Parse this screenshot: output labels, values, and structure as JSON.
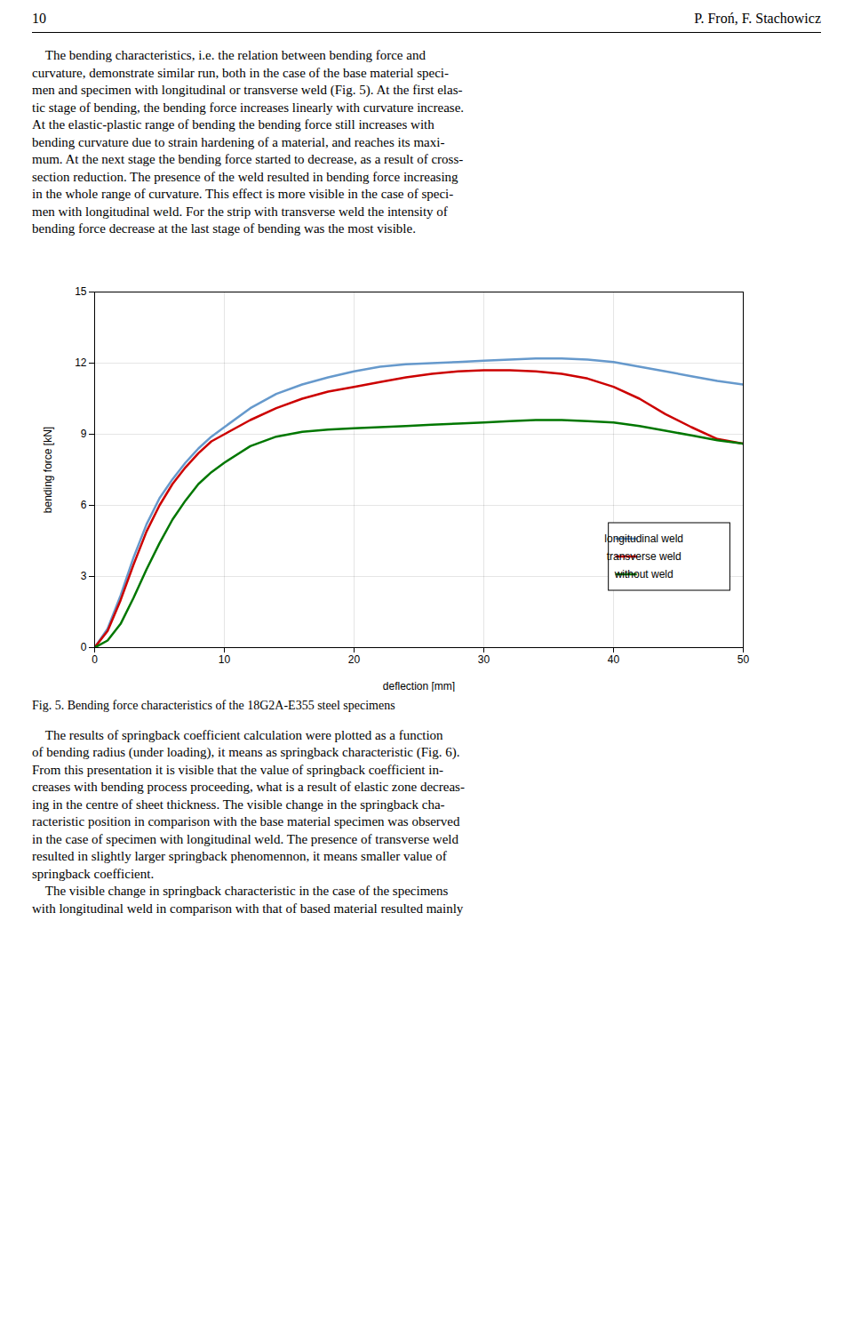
{
  "page": {
    "header_left": "10",
    "header_right": "P. Froń, F. Stachowicz",
    "paragraph1_lines": [
      "    The bending characteristics, i.e. the relation between bending force and",
      "curvature, demonstrate similar run, both in the case of the base material speci-",
      "men and specimen with longitudinal or transverse weld (Fig. 5). At the first elas-",
      "tic stage of bending, the bending force increases linearly with curvature increase.",
      "At the elastic-plastic range of bending the bending force still increases with",
      "bending curvature due to strain hardening of a material, and reaches its maxi-",
      "mum. At the next stage the bending force started to decrease, as a result of cross-",
      "section reduction. The presence of the weld resulted in bending force increasing",
      "in the whole range of curvature. This effect is more visible in the case of speci-",
      "men with longitudinal weld. For the strip with transverse weld the intensity of",
      "bending force decrease at the last stage of bending was the most visible."
    ],
    "paragraph2_lines": [
      "    The results of springback coefficient calculation were plotted as a function",
      "of bending radius (under loading), it means as springback characteristic (Fig. 6).",
      "From this presentation it is visible that the value of springback coefficient in-",
      "creases with bending process proceeding, what is a result of elastic zone decreas-",
      "ing in the centre of sheet thickness. The visible change in the springback cha-",
      "racteristic position in comparison with the base material specimen was observed",
      "in the case of specimen with longitudinal weld. The presence of transverse weld",
      "resulted in slightly larger springback phenomennon, it means smaller value of",
      "springback coefficient.",
      "    The visible change in springback characteristic in the case of the specimens",
      "with longitudinal weld in comparison with that of based material resulted mainly"
    ]
  },
  "chart_data": {
    "type": "line",
    "caption": "Fig. 5. Bending force characteristics of the 18G2A-E355 steel specimens",
    "xlabel": "deflection [mm]",
    "ylabel": "bending force [kN]",
    "x": [
      0,
      1,
      2,
      3,
      4,
      5,
      6,
      7,
      8,
      9,
      10,
      12,
      14,
      16,
      18,
      20,
      22,
      24,
      26,
      28,
      30,
      32,
      34,
      36,
      38,
      40,
      42,
      44,
      46,
      48,
      50
    ],
    "series": [
      {
        "name": "longitudinal weld",
        "color": "#6699cc",
        "values": [
          0,
          0.8,
          2.2,
          3.8,
          5.2,
          6.3,
          7.1,
          7.8,
          8.4,
          8.9,
          9.3,
          10.1,
          10.7,
          11.1,
          11.4,
          11.65,
          11.85,
          11.95,
          12.0,
          12.05,
          12.1,
          12.15,
          12.2,
          12.2,
          12.15,
          12.05,
          11.85,
          11.65,
          11.45,
          11.25,
          11.1
        ]
      },
      {
        "name": "transverse weld",
        "color": "#cc0000",
        "values": [
          0,
          0.7,
          2.0,
          3.5,
          4.9,
          6.0,
          6.9,
          7.6,
          8.2,
          8.7,
          9.0,
          9.6,
          10.1,
          10.5,
          10.8,
          11.0,
          11.2,
          11.4,
          11.55,
          11.65,
          11.7,
          11.7,
          11.65,
          11.55,
          11.35,
          11.0,
          10.5,
          9.85,
          9.3,
          8.8,
          8.6
        ]
      },
      {
        "name": "without weld",
        "color": "#007700",
        "values": [
          0,
          0.3,
          1.0,
          2.1,
          3.3,
          4.4,
          5.4,
          6.2,
          6.9,
          7.4,
          7.8,
          8.5,
          8.9,
          9.1,
          9.2,
          9.25,
          9.3,
          9.35,
          9.4,
          9.45,
          9.5,
          9.55,
          9.6,
          9.6,
          9.55,
          9.5,
          9.35,
          9.15,
          8.95,
          8.75,
          8.6
        ]
      }
    ],
    "xlim": [
      0,
      50
    ],
    "ylim": [
      0,
      15
    ],
    "xticks": [
      0,
      10,
      20,
      30,
      40,
      50
    ],
    "yticks": [
      0,
      3,
      6,
      9,
      12,
      15
    ],
    "grid": true,
    "legend": "lower right"
  }
}
